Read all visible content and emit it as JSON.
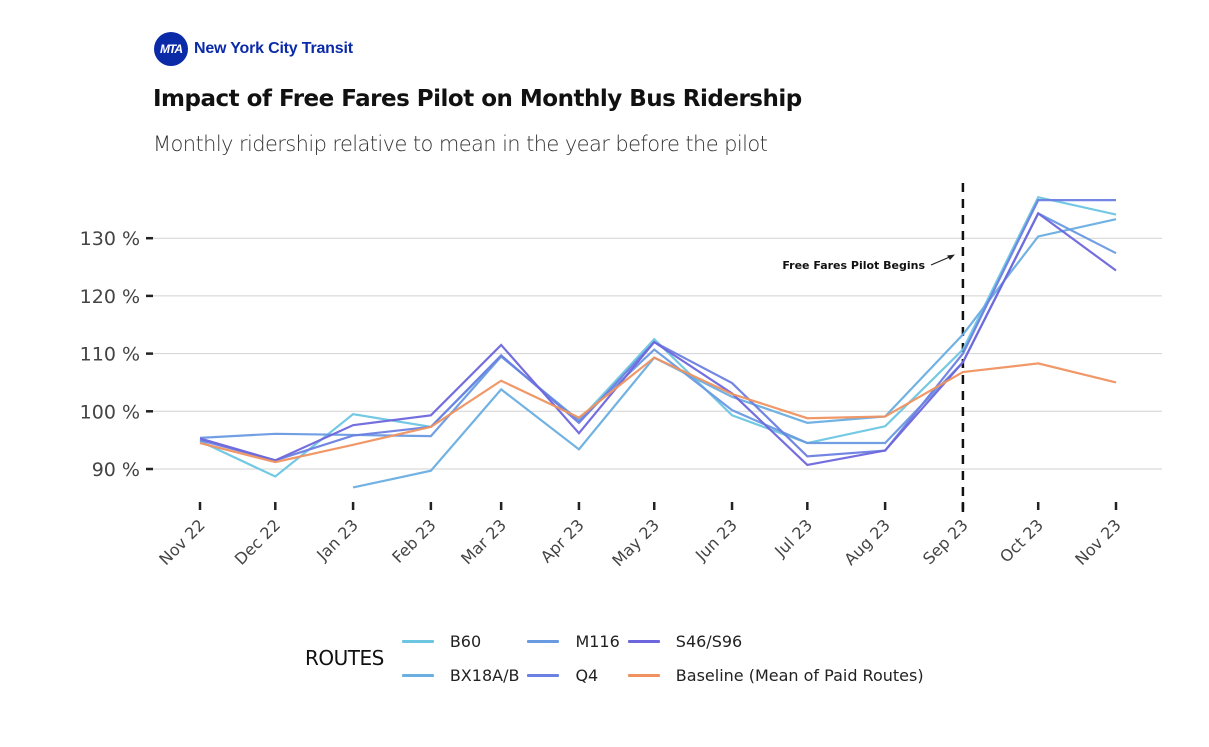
{
  "brand": {
    "logo_text": "MTA",
    "name": "New York City Transit",
    "color": "#0b2aa8"
  },
  "chart_data": {
    "type": "line",
    "title": "Impact of Free Fares Pilot on Monthly Bus Ridership",
    "subtitle": "Monthly ridership relative to mean in the year before the pilot",
    "xlabel": "",
    "ylabel": "",
    "x": [
      "Nov 22",
      "Dec 22",
      "Jan 23",
      "Feb 23",
      "Mar 23",
      "Apr 23",
      "May 23",
      "Jun 23",
      "Jul 23",
      "Aug 23",
      "Sep 23",
      "Oct 23",
      "Nov 23"
    ],
    "x_day_offsets": [
      0,
      30,
      61,
      92,
      120,
      151,
      181,
      212,
      242,
      273,
      304,
      334,
      365
    ],
    "ylim": [
      85,
      140
    ],
    "yticks": [
      90,
      100,
      110,
      120,
      130
    ],
    "ytick_labels": [
      "90 %",
      "100 %",
      "110 %",
      "120 %",
      "130 %"
    ],
    "grid": true,
    "legend_title": "ROUTES",
    "legend_position": "bottom",
    "series": [
      {
        "name": "B60",
        "color": "#6cc6e2",
        "values": [
          94.8,
          88.7,
          99.5,
          97.3,
          109.5,
          98.4,
          112.5,
          99.3,
          94.5,
          97.4,
          110.7,
          137.1,
          134.1
        ]
      },
      {
        "name": "BX18A/B",
        "color": "#6aaee2",
        "values": [
          null,
          null,
          86.8,
          89.7,
          103.8,
          93.4,
          109.3,
          102.5,
          98.0,
          99.1,
          113.3,
          130.3,
          133.3
        ]
      },
      {
        "name": "M116",
        "color": "#6a9ae2",
        "values": [
          95.4,
          96.1,
          95.9,
          95.7,
          109.5,
          98.4,
          110.7,
          100.2,
          94.5,
          94.5,
          108.5,
          134.3,
          127.4
        ]
      },
      {
        "name": "Q4",
        "color": "#6b80e2",
        "values": [
          95.0,
          91.5,
          95.8,
          97.3,
          109.7,
          98.0,
          112.0,
          104.9,
          92.2,
          93.2,
          110.0,
          136.6,
          136.6
        ]
      },
      {
        "name": "S46/S96",
        "color": "#6e66dc",
        "values": [
          95.3,
          91.5,
          97.6,
          99.3,
          111.5,
          96.2,
          112.0,
          103.1,
          90.7,
          93.2,
          108.5,
          134.3,
          124.4
        ]
      },
      {
        "name": "Baseline (Mean of Paid Routes)",
        "color": "#ef9260",
        "values": [
          94.5,
          91.2,
          94.2,
          97.3,
          105.3,
          98.9,
          109.3,
          103.0,
          98.8,
          99.1,
          106.8,
          108.3,
          105.0
        ]
      }
    ],
    "annotations": [
      {
        "type": "vline",
        "x": "Sep 23",
        "style": "dashed",
        "color": "#111111"
      },
      {
        "type": "text",
        "text": "Free Fares Pilot Begins",
        "arrow_to": "Sep 23"
      }
    ]
  }
}
